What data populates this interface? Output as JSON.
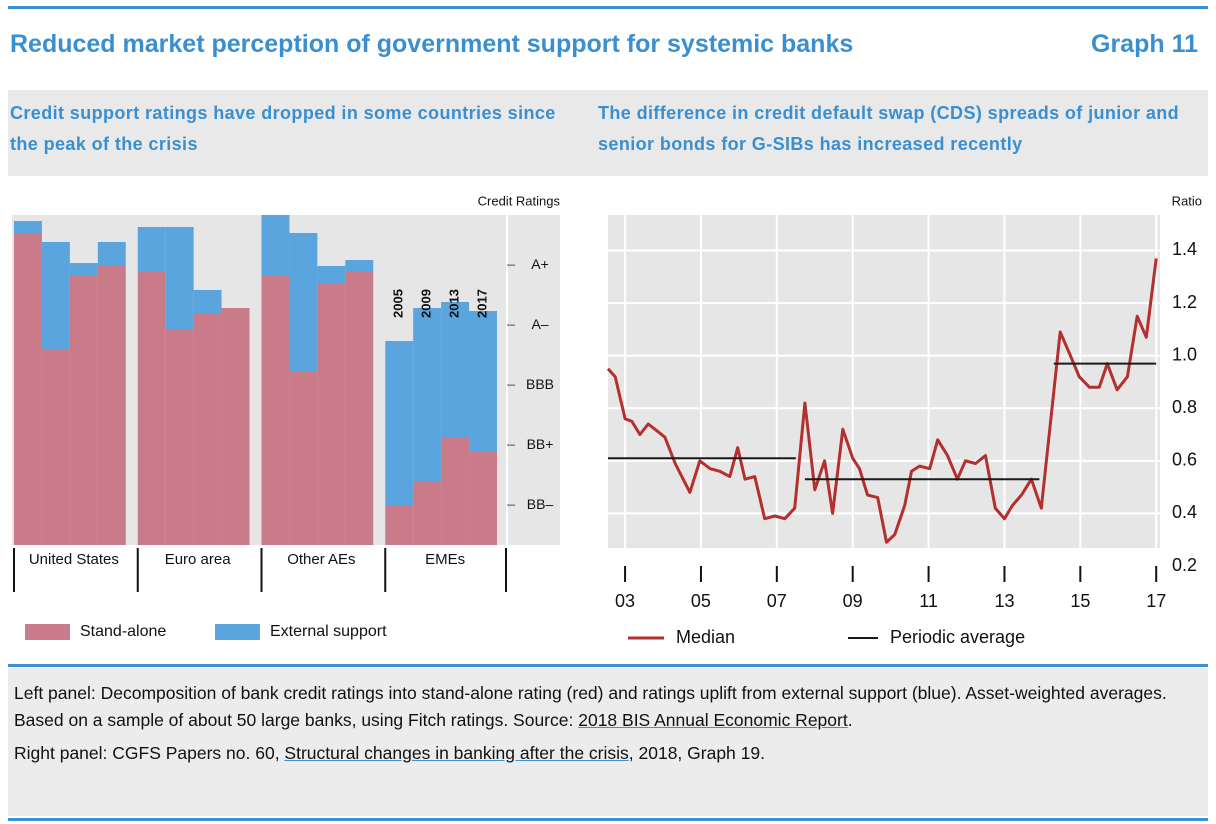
{
  "header": {
    "title": "Reduced market perception of government support for systemic banks",
    "graph": "Graph 11"
  },
  "chart_data": [
    {
      "type": "stacked-bar",
      "subtitle": "Credit support ratings have dropped in some countries since the peak of the crisis",
      "ylabel": "Credit Ratings",
      "categories": [
        "United States",
        "Euro area",
        "Other AEs",
        "EMEs"
      ],
      "years": [
        "2005",
        "2009",
        "2013",
        "2017"
      ],
      "series": [
        {
          "name": "Stand-alone",
          "color": "#c97b89",
          "values": [
            [
              10.4,
              6.5,
              9.0,
              9.3
            ],
            [
              9.1,
              7.2,
              7.7,
              7.9
            ],
            [
              9.0,
              5.8,
              8.7,
              9.1
            ],
            [
              1.3,
              2.1,
              3.6,
              3.1
            ]
          ]
        },
        {
          "name": "External support",
          "color": "#5ba5de",
          "values": [
            [
              0.4,
              3.6,
              0.4,
              0.8
            ],
            [
              1.5,
              3.4,
              0.8,
              0.0
            ],
            [
              2.0,
              4.6,
              0.6,
              0.4
            ],
            [
              5.5,
              5.8,
              4.5,
              4.7
            ]
          ]
        }
      ],
      "ylim": [
        0.67,
        11.67
      ],
      "yticks": [
        {
          "value": 2,
          "label": "BB–"
        },
        {
          "value": 4,
          "label": "BB+"
        },
        {
          "value": 6,
          "label": "BBB"
        },
        {
          "value": 8,
          "label": "A–"
        },
        {
          "value": 10,
          "label": "A+"
        }
      ]
    },
    {
      "type": "line",
      "subtitle": "The difference in credit default swap (CDS) spreads of junior and senior bonds for G-SIBs has increased recently",
      "ylabel": "Ratio",
      "xlim": [
        2002.55,
        2017.1
      ],
      "ylim": [
        0.2,
        1.535
      ],
      "xticks": [
        {
          "value": 2003,
          "label": "03"
        },
        {
          "value": 2005,
          "label": "05"
        },
        {
          "value": 2007,
          "label": "07"
        },
        {
          "value": 2009,
          "label": "09"
        },
        {
          "value": 2011,
          "label": "11"
        },
        {
          "value": 2013,
          "label": "13"
        },
        {
          "value": 2015,
          "label": "15"
        },
        {
          "value": 2017,
          "label": "17"
        }
      ],
      "yticks": [
        0.2,
        0.4,
        0.6,
        0.8,
        {
          "value": 1,
          "label": "1.0"
        },
        1.2,
        1.4
      ],
      "grid": true,
      "series": [
        {
          "name": "Median",
          "color": "#b3302e",
          "x": [
            2002.55,
            2002.74,
            2003.0,
            2003.18,
            2003.39,
            2003.61,
            2003.79,
            2004.05,
            2004.32,
            2004.71,
            2004.97,
            2005.24,
            2005.5,
            2005.76,
            2005.97,
            2006.16,
            2006.42,
            2006.68,
            2006.95,
            2007.21,
            2007.47,
            2007.74,
            2008.0,
            2008.26,
            2008.47,
            2008.74,
            2009.0,
            2009.18,
            2009.39,
            2009.66,
            2009.89,
            2010.11,
            2010.37,
            2010.55,
            2010.76,
            2011.03,
            2011.24,
            2011.5,
            2011.76,
            2011.97,
            2012.24,
            2012.5,
            2012.76,
            2013.0,
            2013.21,
            2013.45,
            2013.71,
            2013.97,
            2014.18,
            2014.47,
            2014.71,
            2014.97,
            2015.24,
            2015.5,
            2015.71,
            2015.97,
            2016.24,
            2016.5,
            2016.74,
            2017.0
          ],
          "values": [
            0.95,
            0.92,
            0.76,
            0.75,
            0.7,
            0.74,
            0.72,
            0.69,
            0.59,
            0.48,
            0.6,
            0.57,
            0.56,
            0.54,
            0.65,
            0.53,
            0.54,
            0.38,
            0.39,
            0.38,
            0.42,
            0.82,
            0.49,
            0.6,
            0.4,
            0.72,
            0.61,
            0.57,
            0.47,
            0.46,
            0.29,
            0.32,
            0.43,
            0.56,
            0.58,
            0.57,
            0.68,
            0.62,
            0.53,
            0.6,
            0.59,
            0.62,
            0.42,
            0.38,
            0.43,
            0.47,
            0.53,
            0.42,
            0.7,
            1.09,
            1.01,
            0.92,
            0.88,
            0.88,
            0.97,
            0.87,
            0.92,
            1.15,
            1.07,
            1.37
          ]
        },
        {
          "name": "Periodic average",
          "color": "#1a1a1a",
          "x": [
            2002.55,
            2007.5,
            null,
            2007.74,
            2013.92,
            null,
            2014.3,
            2017.0
          ],
          "values": [
            0.61,
            0.61,
            null,
            0.53,
            0.53,
            null,
            0.97,
            0.97
          ]
        }
      ]
    }
  ],
  "notes": [
    {
      "text": "Left panel: Decomposition of bank credit ratings into stand-alone rating (red) and ratings uplift from external support (blue). Asset-weighted averages. Based on a sample of about 50 large banks, using Fitch ratings. Source: ",
      "link": "2018 BIS Annual Economic Report",
      "after": "."
    },
    {
      "text": "Right panel: CGFS Papers no. 60, ",
      "link": "Structural changes in banking after the crisis",
      "after": ", 2018, Graph 19."
    }
  ]
}
